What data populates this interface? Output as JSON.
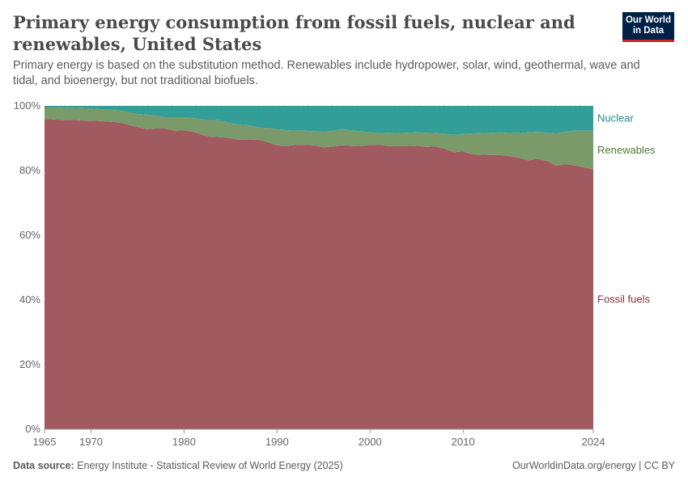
{
  "title": "Primary energy consumption from fossil fuels, nuclear and renewables, United States",
  "subtitle": "Primary energy is based on the substitution method. Renewables include hydropower, solar, wind, geothermal, wave and tidal, and bioenergy, but not traditional biofuels.",
  "logo": "Our World in Data",
  "footer": {
    "source_label": "Data source:",
    "source": "Energy Institute - Statistical Review of World Energy (2025)",
    "credit": "OurWorldinData.org/energy | CC BY"
  },
  "chart_data": {
    "type": "area",
    "stacked": true,
    "xlim": [
      1965,
      2024
    ],
    "ylim": [
      0,
      100
    ],
    "y_unit": "%",
    "x_ticks": [
      1965,
      1970,
      1980,
      1990,
      2000,
      2010,
      2024
    ],
    "y_ticks": [
      "0%",
      "20%",
      "40%",
      "60%",
      "80%",
      "100%"
    ],
    "grid": true,
    "legend": "right-inline",
    "x": [
      1965,
      1966,
      1967,
      1968,
      1969,
      1970,
      1971,
      1972,
      1973,
      1974,
      1975,
      1976,
      1977,
      1978,
      1979,
      1980,
      1981,
      1982,
      1983,
      1984,
      1985,
      1986,
      1987,
      1988,
      1989,
      1990,
      1991,
      1992,
      1993,
      1994,
      1995,
      1996,
      1997,
      1998,
      1999,
      2000,
      2001,
      2002,
      2003,
      2004,
      2005,
      2006,
      2007,
      2008,
      2009,
      2010,
      2011,
      2012,
      2013,
      2014,
      2015,
      2016,
      2017,
      2018,
      2019,
      2020,
      2021,
      2022,
      2023,
      2024
    ],
    "series": [
      {
        "name": "Fossil fuels",
        "color": "#a05a60",
        "label_color": "#883039",
        "values": [
          96.0,
          95.8,
          95.6,
          95.7,
          95.5,
          95.4,
          95.3,
          95.1,
          94.9,
          94.2,
          93.4,
          92.8,
          93.0,
          93.0,
          92.3,
          92.4,
          92.0,
          91.0,
          90.4,
          90.3,
          90.0,
          89.5,
          89.6,
          89.5,
          88.8,
          87.8,
          87.6,
          87.9,
          87.9,
          87.8,
          87.2,
          87.4,
          87.8,
          87.7,
          87.6,
          87.9,
          88.0,
          87.6,
          87.6,
          87.6,
          87.7,
          87.3,
          87.4,
          86.8,
          85.7,
          85.9,
          85.0,
          84.9,
          84.8,
          84.8,
          84.5,
          84.0,
          83.2,
          83.6,
          83.0,
          81.5,
          82.0,
          81.6,
          81.0,
          80.3
        ]
      },
      {
        "name": "Renewables",
        "color": "#7a9a6a",
        "label_color": "#4f7a3a",
        "values": [
          3.5,
          3.7,
          3.8,
          3.7,
          3.8,
          3.8,
          3.7,
          3.7,
          3.7,
          3.8,
          4.1,
          4.5,
          4.0,
          3.5,
          4.2,
          4.1,
          4.2,
          4.8,
          5.2,
          5.2,
          4.6,
          4.7,
          4.4,
          3.8,
          4.4,
          5.0,
          4.9,
          4.4,
          4.4,
          4.4,
          4.8,
          4.9,
          5.0,
          4.7,
          4.5,
          3.9,
          3.6,
          4.1,
          4.0,
          4.1,
          4.1,
          4.4,
          4.2,
          4.6,
          5.3,
          5.4,
          6.5,
          6.7,
          6.9,
          7.0,
          7.1,
          7.6,
          8.6,
          8.4,
          8.7,
          10.0,
          10.0,
          10.7,
          11.3,
          12.0
        ]
      },
      {
        "name": "Nuclear",
        "color": "#339e98",
        "label_color": "#208a84",
        "values": [
          0.5,
          0.5,
          0.6,
          0.6,
          0.7,
          0.8,
          1.0,
          1.2,
          1.4,
          2.0,
          2.5,
          2.7,
          3.0,
          3.5,
          3.5,
          3.5,
          3.8,
          4.2,
          4.4,
          4.5,
          5.4,
          5.8,
          6.0,
          6.7,
          6.8,
          7.2,
          7.5,
          7.7,
          7.7,
          7.8,
          8.0,
          7.7,
          7.2,
          7.6,
          7.9,
          8.2,
          8.4,
          8.3,
          8.4,
          8.3,
          8.2,
          8.3,
          8.4,
          8.6,
          9.0,
          8.7,
          8.5,
          8.4,
          8.3,
          8.2,
          8.4,
          8.4,
          8.2,
          8.0,
          8.3,
          8.5,
          8.0,
          7.7,
          7.7,
          7.7
        ]
      }
    ]
  }
}
